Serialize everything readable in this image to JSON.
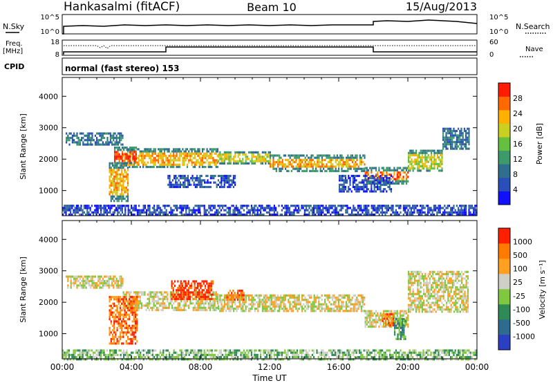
{
  "header": {
    "station": "Hankasalmi (fitACF)",
    "beam": "Beam 10",
    "date": "15/Aug/2013"
  },
  "top_panels": {
    "nsky_label": "N.Sky",
    "nsky_ticks": [
      "10^5",
      "10^0"
    ],
    "nsearch_label": "N.Search",
    "nsearch_ticks": [
      "10^5",
      "10^0"
    ],
    "freq_label": "Freq.",
    "freq_unit": "[MHz]",
    "freq_ticks": [
      "18",
      "8"
    ],
    "nave_label": "Nave",
    "nave_ticks": [
      "60",
      "0"
    ],
    "cpid_label": "CPID",
    "cpid_text": "normal (fast stereo) 153"
  },
  "chart_data": [
    {
      "type": "heatmap",
      "panel": "power",
      "ylabel": "Slant Range [km]",
      "ylim": [
        200,
        4600
      ],
      "yticks": [
        "1000",
        "2000",
        "3000",
        "4000"
      ],
      "xlim": [
        0,
        24
      ],
      "colorbar_label": "Power [dB]",
      "colorbar_ticks": [
        "28",
        "24",
        "20",
        "16",
        "12",
        "8",
        "4"
      ],
      "colorbar_colors": [
        "#1010ff",
        "#2a4fb8",
        "#2f6e8c",
        "#3d9a6a",
        "#66c040",
        "#c9d020",
        "#ffb000",
        "#ff6a00",
        "#ff1c00"
      ],
      "bands": [
        {
          "t0": 0.2,
          "t1": 3.5,
          "r0": 2450,
          "r1": 2850,
          "level": 2
        },
        {
          "t0": 3.5,
          "t1": 9.0,
          "r0": 1750,
          "r1": 2350,
          "level": 6
        },
        {
          "t0": 9.0,
          "t1": 12.0,
          "r0": 1850,
          "r1": 2250,
          "level": 5
        },
        {
          "t0": 12.0,
          "t1": 17.5,
          "r0": 1650,
          "r1": 2150,
          "level": 6
        },
        {
          "t0": 17.5,
          "t1": 20.0,
          "r0": 1250,
          "r1": 1750,
          "level": 7
        },
        {
          "t0": 20.0,
          "t1": 22.0,
          "r0": 1600,
          "r1": 2300,
          "level": 5
        },
        {
          "t0": 22.0,
          "t1": 23.5,
          "r0": 2300,
          "r1": 3000,
          "level": 2
        },
        {
          "t0": 2.7,
          "t1": 3.8,
          "r0": 700,
          "r1": 1900,
          "level": 6
        },
        {
          "t0": 3.0,
          "t1": 4.3,
          "r0": 1850,
          "r1": 2400,
          "level": 8
        },
        {
          "t0": 0.0,
          "t1": 24.0,
          "r0": 200,
          "r1": 550,
          "level": 1
        },
        {
          "t0": 6.0,
          "t1": 10.0,
          "r0": 1100,
          "r1": 1500,
          "level": 1
        },
        {
          "t0": 16.0,
          "t1": 19.0,
          "r0": 1000,
          "r1": 1500,
          "level": 1
        }
      ]
    },
    {
      "type": "heatmap",
      "panel": "velocity",
      "ylabel": "Slant Range [km]",
      "ylim": [
        200,
        4600
      ],
      "yticks": [
        "1000",
        "2000",
        "3000",
        "4000"
      ],
      "xlabel": "Time UT",
      "xlim": [
        0,
        24
      ],
      "xticks": [
        "00:00",
        "04:00",
        "08:00",
        "12:00",
        "16:00",
        "20:00",
        "00:00"
      ],
      "colorbar_label": "Velocity [m s⁻¹]",
      "colorbar_ticks": [
        "1000",
        "500",
        "100",
        "25",
        "-25",
        "-100",
        "-500",
        "-1000"
      ],
      "colorbar_colors": [
        "#2b3fc2",
        "#2f6b8f",
        "#2f8a55",
        "#80c840",
        "#cfcfc7",
        "#ffa020",
        "#ff7a00",
        "#ff2000"
      ],
      "bands": [
        {
          "t0": 0.2,
          "t1": 3.5,
          "r0": 2450,
          "r1": 2850,
          "level": 4
        },
        {
          "t0": 3.5,
          "t1": 9.0,
          "r0": 1750,
          "r1": 2350,
          "level": 4
        },
        {
          "t0": 9.0,
          "t1": 17.5,
          "r0": 1700,
          "r1": 2250,
          "level": 4
        },
        {
          "t0": 17.5,
          "t1": 20.0,
          "r0": 1250,
          "r1": 1750,
          "level": 4
        },
        {
          "t0": 20.0,
          "t1": 23.5,
          "r0": 1700,
          "r1": 3000,
          "level": 4
        },
        {
          "t0": 2.7,
          "t1": 4.3,
          "r0": 700,
          "r1": 2200,
          "level": 6
        },
        {
          "t0": 6.3,
          "t1": 8.7,
          "r0": 2100,
          "r1": 2700,
          "level": 7
        },
        {
          "t0": 9.5,
          "t1": 10.5,
          "r0": 2050,
          "r1": 2400,
          "level": 6
        },
        {
          "t0": 18.5,
          "t1": 19.2,
          "r0": 1250,
          "r1": 1650,
          "level": 6
        },
        {
          "t0": 19.2,
          "t1": 19.9,
          "r0": 800,
          "r1": 1500,
          "level": 2
        },
        {
          "t0": 0.0,
          "t1": 24.0,
          "r0": 200,
          "r1": 500,
          "level": 3
        }
      ]
    }
  ]
}
